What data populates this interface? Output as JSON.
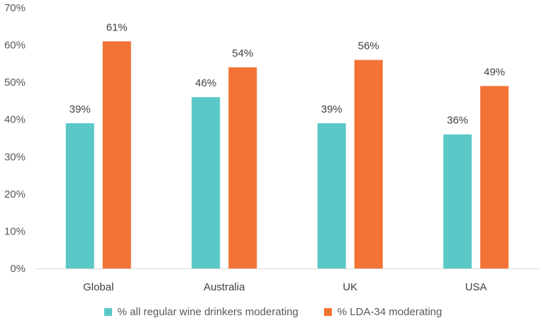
{
  "chart_data": {
    "type": "bar",
    "categories": [
      "Global",
      "Australia",
      "UK",
      "USA"
    ],
    "series": [
      {
        "name": "% all regular wine drinkers moderating",
        "values": [
          39,
          46,
          39,
          36
        ],
        "labels": [
          "39%",
          "46%",
          "39%",
          "36%"
        ],
        "color": "#5BC8C8"
      },
      {
        "name": "% LDA-34 moderating",
        "values": [
          61,
          54,
          56,
          49
        ],
        "labels": [
          "61%",
          "54%",
          "56%",
          "49%"
        ],
        "color": "#F37336"
      }
    ],
    "yticks": [
      "0%",
      "10%",
      "20%",
      "30%",
      "40%",
      "50%",
      "60%",
      "70%"
    ],
    "ylim": [
      0,
      70
    ],
    "grid": false,
    "legend_position": "bottom"
  }
}
